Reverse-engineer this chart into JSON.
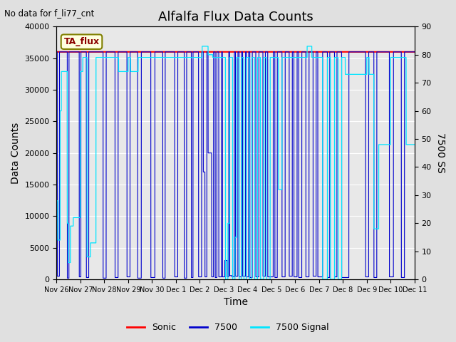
{
  "title": "Alfalfa Flux Data Counts",
  "no_data_label": "No data for f_li77_cnt",
  "ta_flux_label": "TA_flux",
  "xlabel": "Time",
  "ylabel_left": "Data Counts",
  "ylabel_right": "7500 SS",
  "ylim_left": [
    0,
    40000
  ],
  "ylim_right": [
    0,
    90
  ],
  "yticks_left": [
    0,
    5000,
    10000,
    15000,
    20000,
    25000,
    30000,
    35000,
    40000
  ],
  "yticks_right": [
    0,
    10,
    20,
    30,
    40,
    50,
    60,
    70,
    80,
    90
  ],
  "xtick_labels": [
    "Nov 26",
    "Nov 27",
    "Nov 28",
    "Nov 29",
    "Nov 30",
    "Dec 1",
    "Dec 2",
    "Dec 3",
    "Dec 4",
    "Dec 5",
    "Dec 6",
    "Dec 7",
    "Dec 8",
    "Dec 9",
    "Dec 10",
    "Dec 11"
  ],
  "bg_color": "#e0e0e0",
  "plot_bg_color": "#e8e8e8",
  "sonic_color": "#ff0000",
  "blue_color": "#0000cc",
  "cyan_color": "#00e5ff",
  "legend_items": [
    "Sonic",
    "7500",
    "7500 Signal"
  ],
  "legend_colors": [
    "#ff0000",
    "#0000cc",
    "#00e5ff"
  ],
  "title_fontsize": 13,
  "axis_label_fontsize": 10,
  "tick_fontsize": 8,
  "n_days": 15,
  "sonic_level": 36000,
  "grid_color": "#ffffff"
}
